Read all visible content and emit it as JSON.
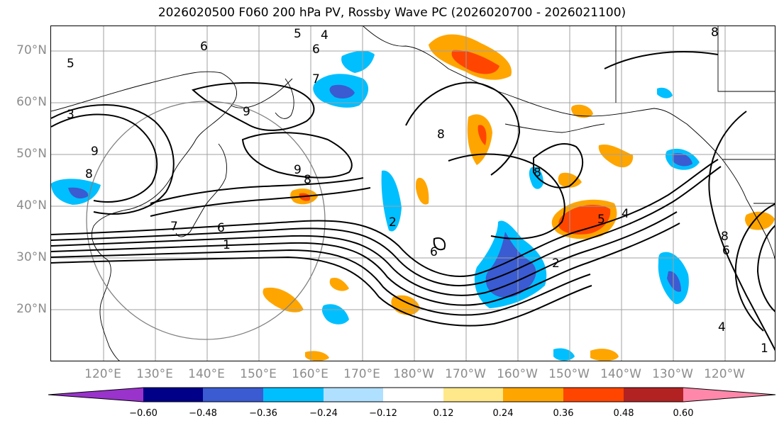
{
  "title": "2026020500 F060 200 hPa PV, Rossby Wave PC (2026020700 - 2026021100)",
  "lat_labels": [
    "70°N",
    "60°N",
    "50°N",
    "40°N",
    "30°N",
    "20°N"
  ],
  "lon_labels": [
    "120°E",
    "130°E",
    "140°E",
    "150°E",
    "160°E",
    "170°E",
    "180°W",
    "170°W",
    "160°W",
    "150°W",
    "140°W",
    "130°W",
    "120°W"
  ],
  "contour_labels": [
    "5",
    "4",
    "6",
    "5",
    "3",
    "7",
    "9",
    "8",
    "9",
    "8",
    "7",
    "6",
    "1",
    "2",
    "4",
    "5",
    "6",
    "8",
    "2",
    "6",
    "8",
    "1",
    "4",
    "6",
    "8",
    "9",
    "8"
  ],
  "colorbar": {
    "ticks": [
      "−0.60",
      "−0.48",
      "−0.36",
      "−0.24",
      "−0.12",
      "0.12",
      "0.24",
      "0.36",
      "0.48",
      "0.60"
    ],
    "colors": [
      "#9933cc",
      "#000088",
      "#3a5bd1",
      "#00bfff",
      "#b0e0ff",
      "#ffffff",
      "#ffe88a",
      "#ffa500",
      "#ff4500",
      "#b22222",
      "#ff88aa"
    ]
  },
  "shading_colors": {
    "neg_strong": "#3a5bd1",
    "neg_mid": "#00bfff",
    "neg_weak": "#b0e0ff",
    "pos_weak": "#ffe88a",
    "pos_mid": "#ffa500",
    "pos_strong": "#ff4500"
  }
}
